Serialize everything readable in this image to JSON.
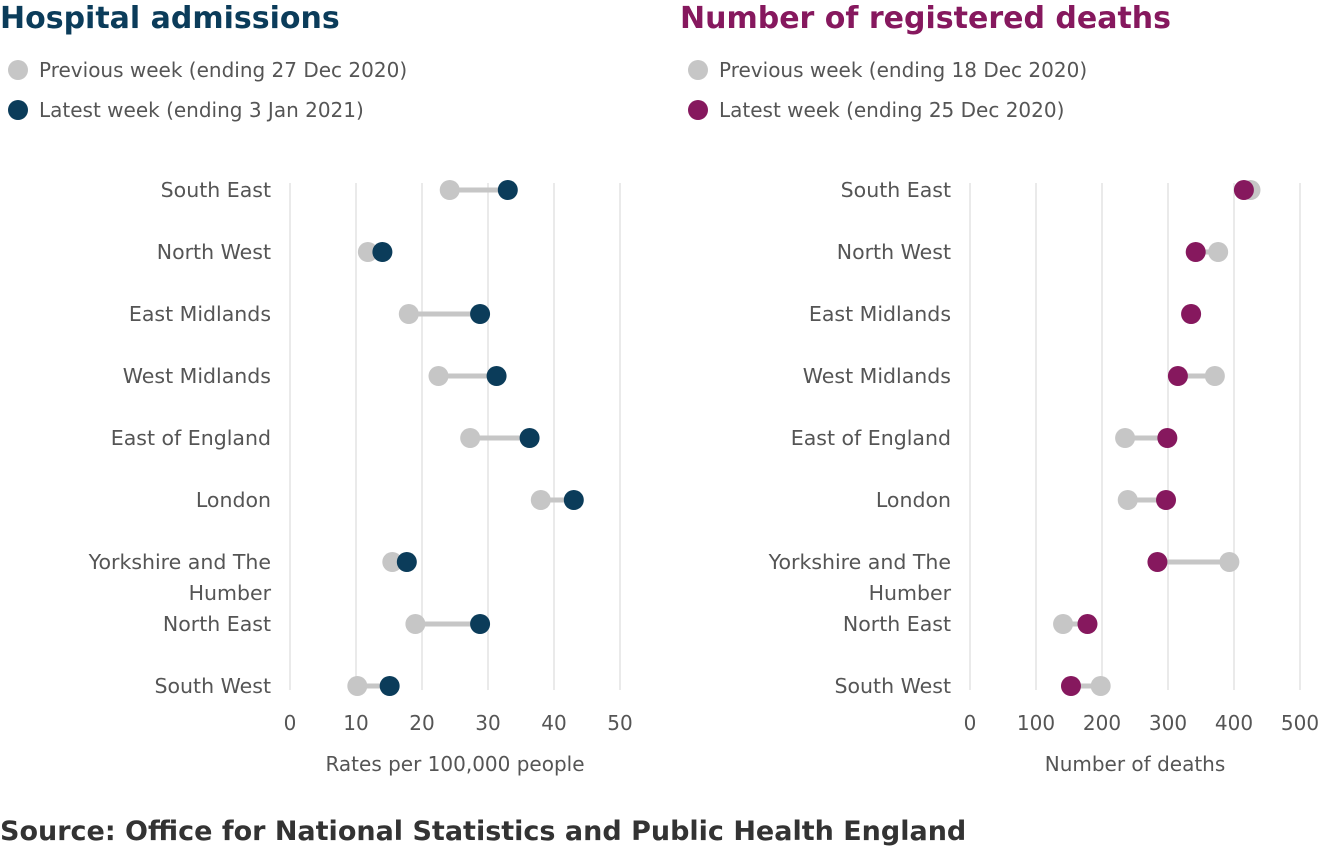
{
  "source": "Source: Office for National Statistics and Public Health England",
  "colors": {
    "previous": "#c6c6c6",
    "connector": "#c6c6c6",
    "grid": "#e3e3e3",
    "admissions_title": "#0b3c5a",
    "admissions_latest": "#0b3c5a",
    "deaths_title": "#86185e",
    "deaths_latest": "#86185e"
  },
  "chart_data": [
    {
      "type": "dumbbell",
      "title": "Hospital admissions",
      "legend": [
        "Previous week (ending 27 Dec 2020)",
        "Latest week (ending 3 Jan 2021)"
      ],
      "xlabel": "Rates per 100,000 people",
      "xlim": [
        0,
        50
      ],
      "xticks": [
        "0",
        "10",
        "20",
        "30",
        "40",
        "50"
      ],
      "grid": true,
      "categories": [
        "South East",
        "North West",
        "East Midlands",
        "West Midlands",
        "East of England",
        "London",
        "Yorkshire and The Humber",
        "North East",
        "South West"
      ],
      "series": [
        {
          "name": "Previous week (ending 27 Dec 2020)",
          "values": [
            24.2,
            11.8,
            18.0,
            22.5,
            27.3,
            38.0,
            15.5,
            19.0,
            10.2
          ]
        },
        {
          "name": "Latest week (ending 3 Jan 2021)",
          "values": [
            33.0,
            14.0,
            28.8,
            31.3,
            36.3,
            43.0,
            17.7,
            28.8,
            15.1
          ]
        }
      ]
    },
    {
      "type": "dumbbell",
      "title": "Number of registered deaths",
      "legend": [
        "Previous week (ending 18 Dec 2020)",
        "Latest week (ending 25 Dec 2020)"
      ],
      "xlabel": "Number of deaths",
      "xlim": [
        0,
        500
      ],
      "xticks": [
        "0",
        "100",
        "200",
        "300",
        "400",
        "500"
      ],
      "grid": true,
      "categories": [
        "South East",
        "North West",
        "East Midlands",
        "West Midlands",
        "East of England",
        "London",
        "Yorkshire and The Humber",
        "North East",
        "South West"
      ],
      "series": [
        {
          "name": "Previous week (ending 18 Dec 2020)",
          "values": [
            425,
            376,
            335,
            371,
            235,
            239,
            393,
            141,
            198
          ]
        },
        {
          "name": "Latest week (ending 25 Dec 2020)",
          "values": [
            415,
            342,
            335,
            315,
            299,
            297,
            284,
            178,
            153
          ]
        }
      ]
    }
  ]
}
